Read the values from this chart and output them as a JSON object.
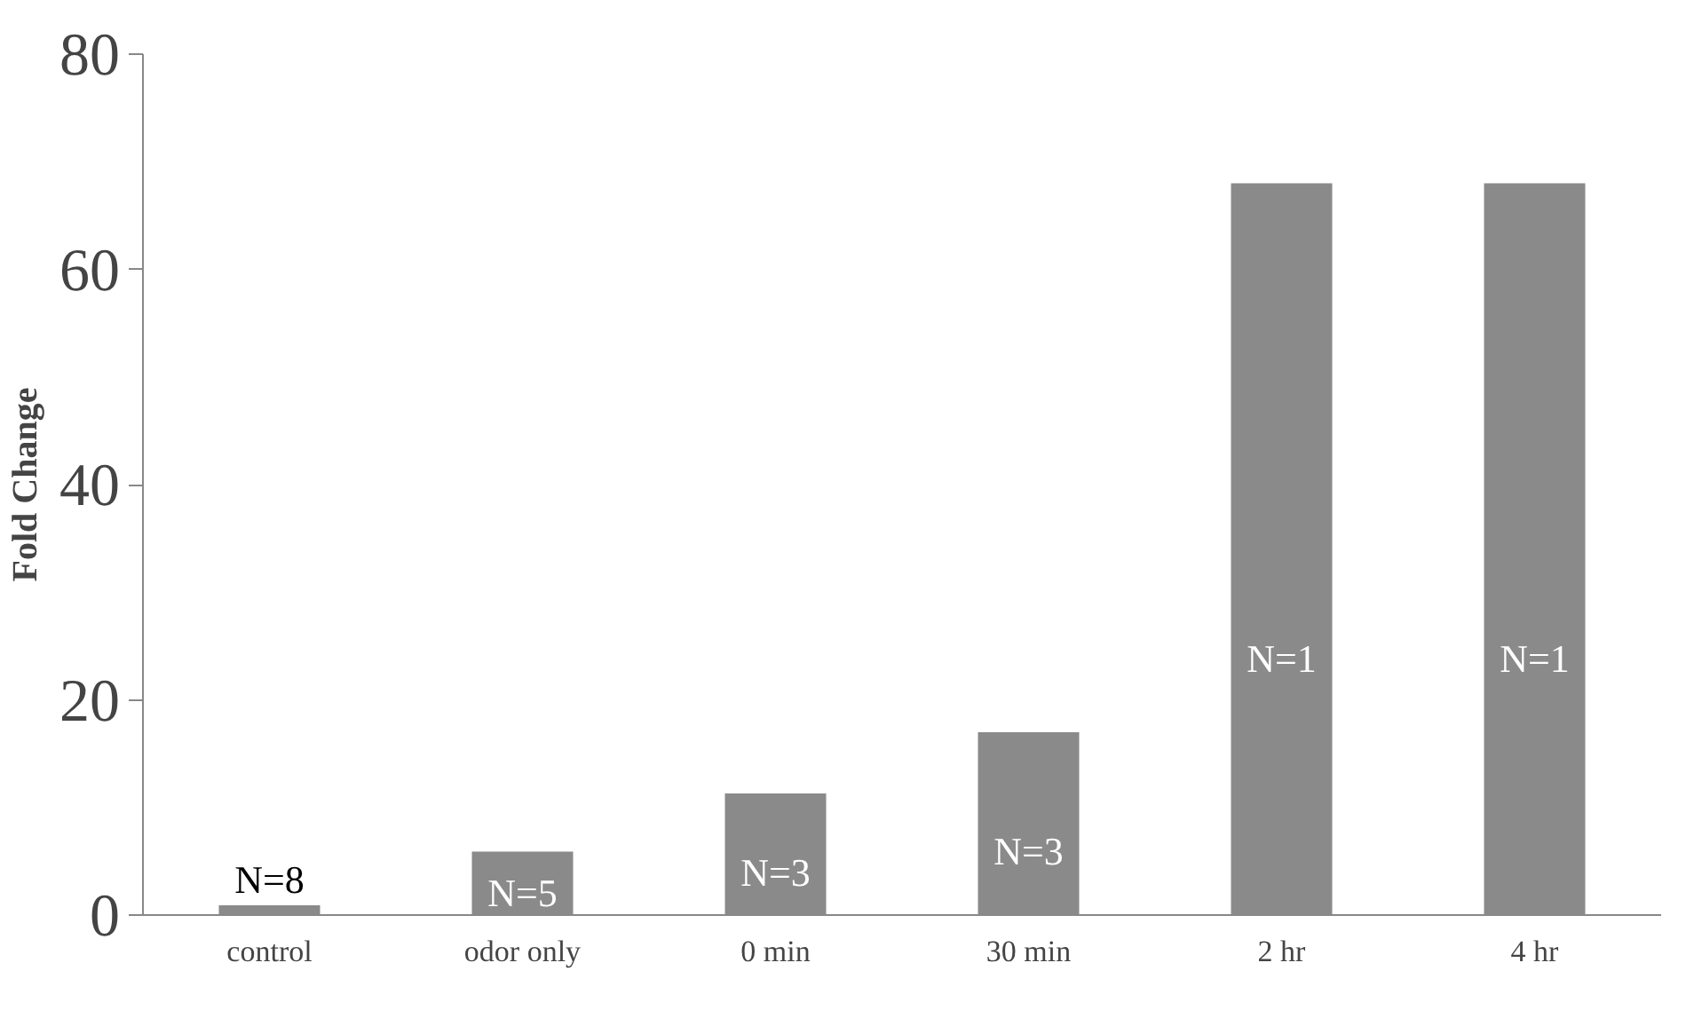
{
  "chart_data": {
    "type": "bar",
    "ylabel": "Fold Change",
    "categories": [
      "control",
      "odor only",
      "0 min",
      "30 min",
      "2 hr",
      "4 hr"
    ],
    "values": [
      0.9,
      5.9,
      11.3,
      17.0,
      68,
      68
    ],
    "color": "#8a8a8a",
    "ylim": [
      0,
      80
    ],
    "yticks": [
      0,
      20,
      40,
      60,
      80
    ],
    "grid": false,
    "legend": false,
    "annotations": [
      "N=8",
      "N=5",
      "N=3",
      "N=3",
      "N=1",
      "N=1"
    ]
  }
}
